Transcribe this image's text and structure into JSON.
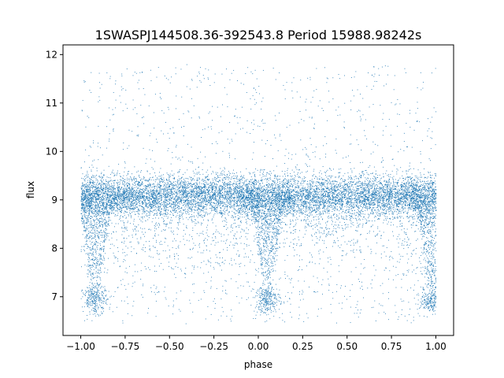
{
  "chart_data": {
    "type": "scatter",
    "title": "1SWASPJ144508.36-392543.8 Period 15988.98242s",
    "xlabel": "phase",
    "ylabel": "flux",
    "xlim": [
      -1.1,
      1.1
    ],
    "ylim": [
      6.2,
      12.2
    ],
    "xticks": [
      -1.0,
      -0.75,
      -0.5,
      -0.25,
      0.0,
      0.25,
      0.5,
      0.75,
      1.0
    ],
    "xtick_labels": [
      "−1.00",
      "−0.75",
      "−0.50",
      "−0.25",
      "0.00",
      "0.25",
      "0.50",
      "0.75",
      "1.00"
    ],
    "yticks": [
      7,
      8,
      9,
      10,
      11,
      12
    ],
    "ytick_labels": [
      "7",
      "8",
      "9",
      "10",
      "11",
      "12"
    ],
    "grid": false,
    "legend": "none",
    "series": [
      {
        "color": "#1f77b4",
        "marker": "point",
        "x_range": [
          -1.0,
          1.0
        ],
        "baseline_flux": 9.1,
        "baseline_spread": 0.35,
        "y_extent": [
          6.45,
          11.8
        ],
        "eclipse_centers": [
          -0.92,
          0.05,
          0.98
        ],
        "eclipse_min_flux": 6.95,
        "description_points": [
          {
            "x": -1.0,
            "y": 9.1
          },
          {
            "x": -0.92,
            "y": 7.0
          },
          {
            "x": -0.75,
            "y": 9.1
          },
          {
            "x": -0.5,
            "y": 9.1
          },
          {
            "x": -0.25,
            "y": 9.1
          },
          {
            "x": 0.05,
            "y": 7.0
          },
          {
            "x": 0.25,
            "y": 9.1
          },
          {
            "x": 0.5,
            "y": 9.1
          },
          {
            "x": 0.75,
            "y": 9.1
          },
          {
            "x": 0.98,
            "y": 7.0
          },
          {
            "x": 1.0,
            "y": 9.1
          }
        ]
      }
    ]
  }
}
